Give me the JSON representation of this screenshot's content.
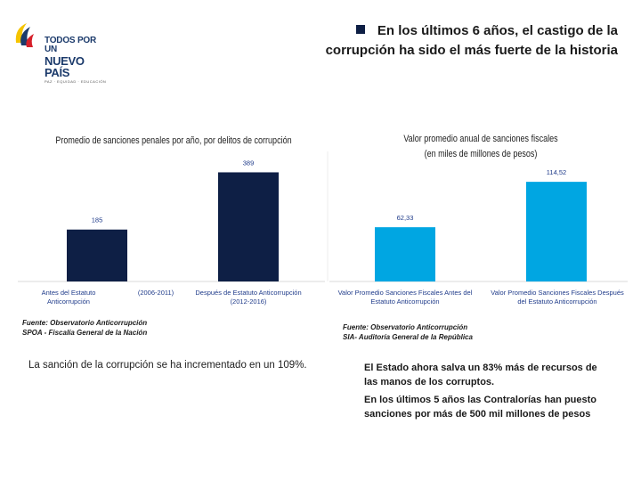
{
  "logo": {
    "line1": "TODOS POR UN",
    "line2": "NUEVO PAÍS",
    "line3": "PAZ · EQUIDAD · EDUCACIÓN",
    "colors": [
      "#f5c400",
      "#1b3a6b",
      "#d6202a"
    ]
  },
  "headline": {
    "line1": "En los últimos 6 años, el castigo de la",
    "line2": "corrupción ha sido el más fuerte de la historia"
  },
  "chart_data": [
    {
      "type": "bar",
      "title": "Promedio de sanciones penales por año, por delitos de corrupción",
      "categories": [
        "Antes del Estatuto Anticorrupción (2006-2011)",
        "Después de Estatuto Anticorrupción (2012-2016)"
      ],
      "category_parts": [
        [
          "Antes del Estatuto Anticorrupción",
          "(2006-2011)"
        ],
        [
          "Después de Estatuto Anticorrupción",
          "(2012-2016)"
        ]
      ],
      "values": [
        185,
        389
      ],
      "data_labels": [
        "185",
        "389"
      ],
      "ylim": [
        0,
        400
      ],
      "color": "#0e1f45",
      "grid": false,
      "source": [
        "Fuente: Observatorio Anticorrupción",
        "SPOA - Fiscalía General de la Nación"
      ]
    },
    {
      "type": "bar",
      "title": "Valor promedio anual de sanciones fiscales",
      "subtitle": "(en miles de millones de pesos)",
      "categories": [
        "Valor Promedio Sanciones Fiscales Antes del Estatuto Anticorrupción",
        "Valor Promedio Sanciones Fiscales Después del Estatuto Anticorrupción"
      ],
      "values": [
        62.33,
        114.52
      ],
      "data_labels": [
        "62,33",
        "114,52"
      ],
      "ylim": [
        0,
        130
      ],
      "color": "#00a6e2",
      "grid": false,
      "source": [
        "Fuente: Observatorio Anticorrupción",
        "SIA- Auditoría General de la República"
      ]
    }
  ],
  "notes": {
    "left": "La sanción de la corrupción se ha incrementado en un 109%.",
    "right": [
      "El Estado ahora salva un 83% más de recursos de las manos de los corruptos.",
      "En los últimos 5 años las Contralorías han puesto sanciones por más de 500 mil millones de pesos"
    ]
  }
}
